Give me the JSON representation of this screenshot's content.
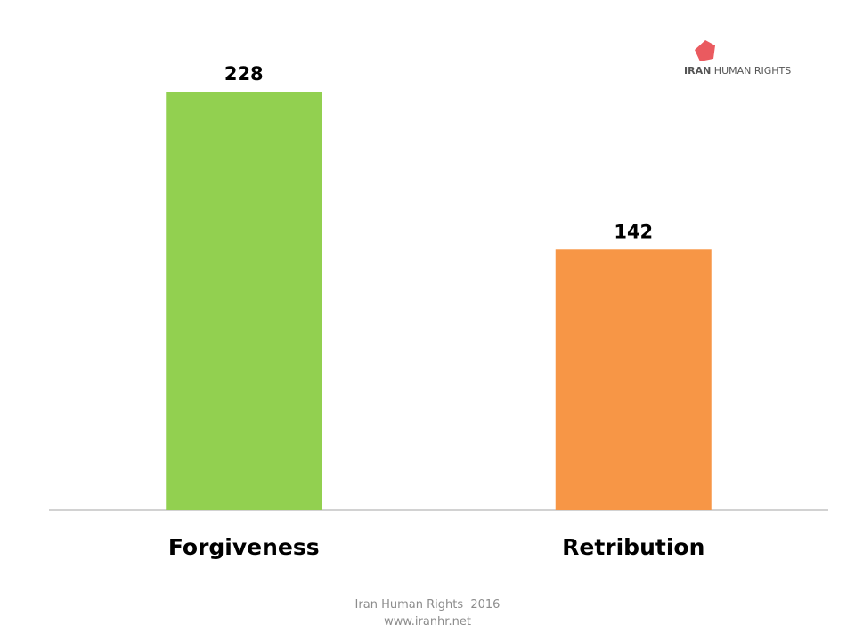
{
  "chart_data": {
    "type": "bar",
    "categories": [
      "Forgiveness",
      "Retribution"
    ],
    "values": [
      228,
      142
    ],
    "colors": [
      "#92d050",
      "#f79646"
    ],
    "logo": {
      "bold": "IRAN",
      "text": "HUMAN RIGHTS"
    },
    "footer": [
      "Iran Human Rights  2016",
      "www.iranhr.net"
    ]
  }
}
